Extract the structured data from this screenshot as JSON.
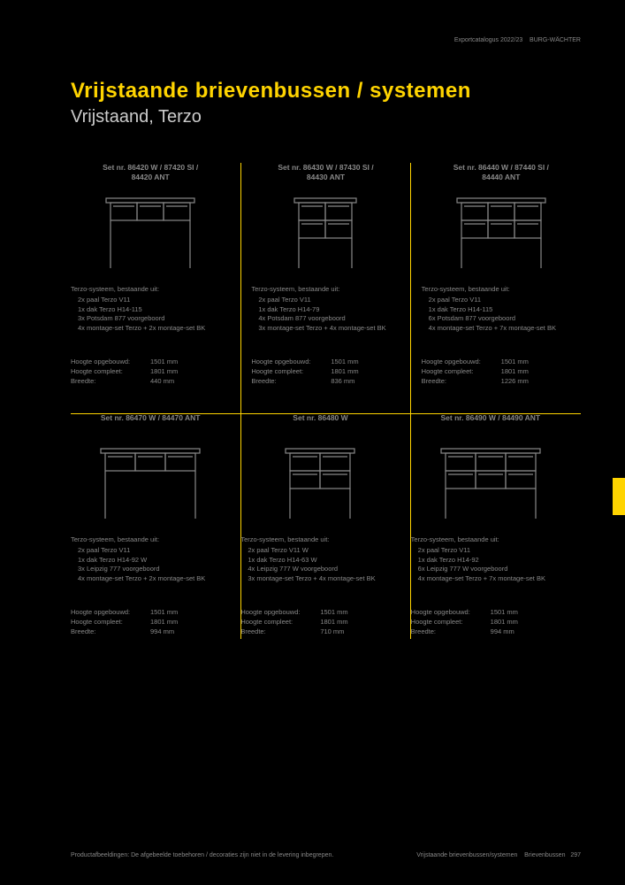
{
  "header": {
    "meta_left": "Exportcatalogus 2022/23",
    "meta_right": "BURG-WÄCHTER"
  },
  "title": {
    "primary": "Vrijstaande brievenbussen / systemen",
    "secondary": "Vrijstaand, Terzo"
  },
  "cells": [
    {
      "set_line1": "Set nr. 86420 W / 87420 SI /",
      "set_line2": "84420 ANT",
      "desc_label": "Terzo-systeem, bestaande uit:",
      "desc_items": [
        "2x paal Terzo V11",
        "1x dak Terzo H14-115",
        "3x Potsdam 877 voorgeboord",
        "4x montage-set Terzo + 2x montage-set BK"
      ],
      "dims": [
        {
          "label": "Hoogte opgebouwd:",
          "value": "1501 mm"
        },
        {
          "label": "Hoogte compleet:",
          "value": "1801 mm"
        },
        {
          "label": "Breedte:",
          "value": "440 mm"
        }
      ],
      "illustration": "mailbox-3x1"
    },
    {
      "set_line1": "Set nr. 86430 W / 87430 SI /",
      "set_line2": "84430 ANT",
      "desc_label": "Terzo-systeem, bestaande uit:",
      "desc_items": [
        "2x paal Terzo V11",
        "1x dak Terzo H14-79",
        "4x Potsdam 877 voorgeboord",
        "3x montage-set Terzo + 4x montage-set BK"
      ],
      "dims": [
        {
          "label": "Hoogte opgebouwd:",
          "value": "1501 mm"
        },
        {
          "label": "Hoogte compleet:",
          "value": "1801 mm"
        },
        {
          "label": "Breedte:",
          "value": "836 mm"
        }
      ],
      "illustration": "mailbox-2x2"
    },
    {
      "set_line1": "Set nr. 86440 W / 87440 SI /",
      "set_line2": "84440 ANT",
      "desc_label": "Terzo-systeem, bestaande uit:",
      "desc_items": [
        "2x paal Terzo V11",
        "1x dak Terzo H14-115",
        "6x Potsdam 877 voorgeboord",
        "4x montage-set Terzo + 7x montage-set BK"
      ],
      "dims": [
        {
          "label": "Hoogte opgebouwd:",
          "value": "1501 mm"
        },
        {
          "label": "Hoogte compleet:",
          "value": "1801 mm"
        },
        {
          "label": "Breedte:",
          "value": "1226 mm"
        }
      ],
      "illustration": "mailbox-3x2"
    },
    {
      "set_line1": "Set nr. 86470 W / 84470 ANT",
      "set_line2": "",
      "desc_label": "Terzo-systeem, bestaande uit:",
      "desc_items": [
        "2x paal Terzo V11",
        "1x dak Terzo H14-92 W",
        "3x Leipzig 777 voorgeboord",
        "4x montage-set Terzo + 2x montage-set BK"
      ],
      "dims": [
        {
          "label": "Hoogte opgebouwd:",
          "value": "1501 mm"
        },
        {
          "label": "Hoogte compleet:",
          "value": "1801 mm"
        },
        {
          "label": "Breedte:",
          "value": "994 mm"
        }
      ],
      "illustration": "mailbox-3x1-wide"
    },
    {
      "set_line1": "Set nr. 86480 W",
      "set_line2": "",
      "desc_label": "Terzo-systeem, bestaande uit:",
      "desc_items": [
        "2x paal Terzo V11 W",
        "1x dak Terzo H14-63 W",
        "4x Leipzig 777 W voorgeboord",
        "3x montage-set Terzo + 4x montage-set BK"
      ],
      "dims": [
        {
          "label": "Hoogte opgebouwd:",
          "value": "1501 mm"
        },
        {
          "label": "Hoogte compleet:",
          "value": "1801 mm"
        },
        {
          "label": "Breedte:",
          "value": "710 mm"
        }
      ],
      "illustration": "mailbox-2x2-wide"
    },
    {
      "set_line1": "Set nr. 86490 W / 84490 ANT",
      "set_line2": "",
      "desc_label": "Terzo-systeem, bestaande uit:",
      "desc_items": [
        "2x paal Terzo V11",
        "1x dak Terzo H14-92",
        "6x Leipzig 777 W voorgeboord",
        "4x montage-set Terzo + 7x montage-set BK"
      ],
      "dims": [
        {
          "label": "Hoogte opgebouwd:",
          "value": "1501 mm"
        },
        {
          "label": "Hoogte compleet:",
          "value": "1801 mm"
        },
        {
          "label": "Breedte:",
          "value": "994 mm"
        }
      ],
      "illustration": "mailbox-3x2-wide"
    }
  ],
  "footer": {
    "left": "Productafbeeldingen: De afgebeelde toebehoren / decoraties zijn niet in de levering inbegrepen.",
    "right_a": "Vrijstaande brievenbussen/systemen",
    "right_b": "Brievenbussen",
    "right_c": "297"
  },
  "colors": {
    "accent": "#ffd400",
    "text": "#888888",
    "background": "#000000"
  }
}
